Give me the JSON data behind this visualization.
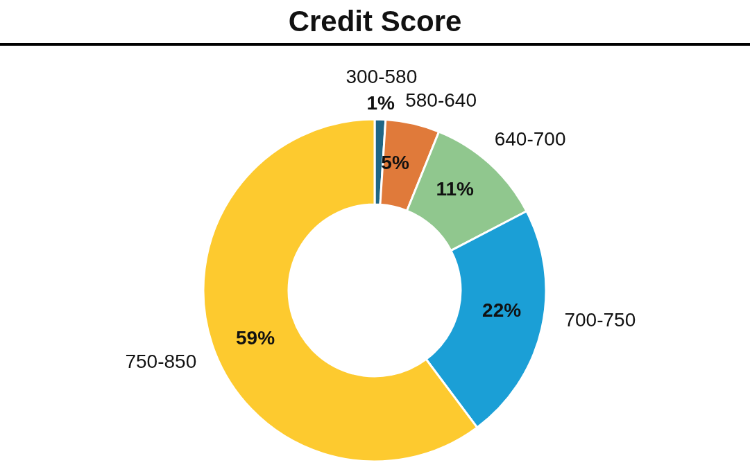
{
  "chart_data": {
    "type": "donut",
    "title": "Credit Score",
    "categories": [
      "300-580",
      "580-640",
      "640-700",
      "700-750",
      "750-850"
    ],
    "values": [
      1,
      5,
      11,
      22,
      59
    ],
    "colors": [
      "#1f6685",
      "#e07a3a",
      "#90c78e",
      "#1b9fd6",
      "#fdca2f"
    ],
    "value_labels": [
      "1%",
      "5%",
      "11%",
      "22%",
      "59%"
    ]
  }
}
